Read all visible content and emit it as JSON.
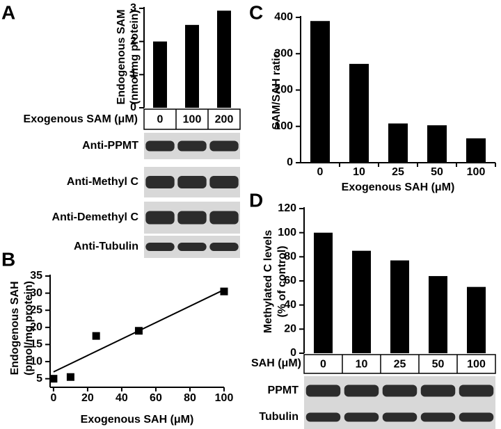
{
  "chart_data": [
    {
      "type": "bar",
      "panel": "A",
      "y_label": [
        "Endogenous SAM",
        "(nmol/mg protein)"
      ],
      "x_label": "Exogenous SAM (μM)",
      "categories": [
        "0",
        "100",
        "200"
      ],
      "values": [
        2.0,
        2.5,
        2.93
      ],
      "color": "#000000",
      "ylim": [
        0,
        3
      ],
      "yticks": [
        0,
        1,
        2,
        3
      ],
      "blots": [
        "Anti-PPMT",
        "Anti-Methyl C",
        "Anti-Demethyl C",
        "Anti-Tubulin"
      ]
    },
    {
      "type": "scatter",
      "panel": "B",
      "y_label": [
        "Endogenous SAH",
        "(pmol/mg protein)"
      ],
      "x_label": "Exogenous SAH (μM)",
      "x": [
        0,
        10,
        25,
        50,
        100
      ],
      "values": [
        5,
        5.5,
        17.5,
        19,
        30.5
      ],
      "color": "#000000",
      "fit": {
        "x": [
          0,
          100
        ],
        "values": [
          7,
          31
        ]
      },
      "xlim": [
        -2,
        100
      ],
      "xticks": [
        0,
        20,
        40,
        60,
        80,
        100
      ],
      "ylim": [
        2.5,
        35
      ],
      "yticks": [
        5,
        10,
        15,
        20,
        25,
        30,
        35
      ]
    },
    {
      "type": "bar",
      "panel": "C",
      "y_label": [
        "SAM/SAH ratio"
      ],
      "x_label": "Exogenous SAH (μM)",
      "categories": [
        "0",
        "10",
        "25",
        "50",
        "100"
      ],
      "values": [
        390,
        272,
        108,
        103,
        67
      ],
      "color": "#000000",
      "ylim": [
        0,
        400
      ],
      "yticks": [
        0,
        100,
        200,
        300,
        400
      ]
    },
    {
      "type": "bar",
      "panel": "D",
      "y_label": [
        "Methylated  C levels",
        "(% of control)"
      ],
      "x_label": "SAH (μM)",
      "categories": [
        "0",
        "10",
        "25",
        "50",
        "100"
      ],
      "values": [
        100,
        85,
        77,
        64,
        55
      ],
      "color": "#000000",
      "ylim": [
        0,
        120
      ],
      "yticks": [
        0,
        20,
        40,
        60,
        80,
        100,
        120
      ],
      "blots": [
        "PPMT",
        "Tubulin"
      ]
    }
  ]
}
